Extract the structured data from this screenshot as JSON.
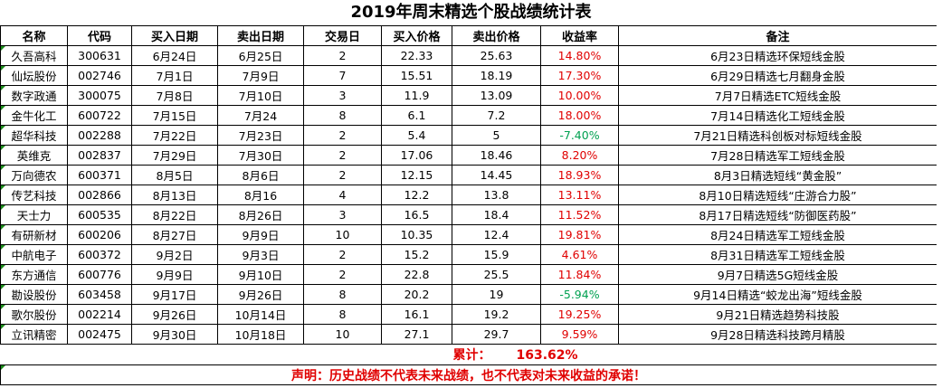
{
  "title": "2019年周末精选个股战绩统计表",
  "headers": [
    "名称",
    "代码",
    "买入日期",
    "卖出日期",
    "交易日",
    "买入价格",
    "卖出价格",
    "收益率",
    "备注"
  ],
  "rows": [
    {
      "name": "久吾高科",
      "code": "300631",
      "buy_date": "6月24日",
      "sell_date": "6月25日",
      "days": "2",
      "buy_price": "22.33",
      "sell_price": "25.63",
      "return": "14.80%",
      "note": "6月23日精选环保短线金股"
    },
    {
      "name": "仙坛股份",
      "code": "002746",
      "buy_date": "7月1日",
      "sell_date": "7月9日",
      "days": "7",
      "buy_price": "15.51",
      "sell_price": "18.19",
      "return": "17.30%",
      "note": "6月29日精选七月翻身金股"
    },
    {
      "name": "数字政通",
      "code": "300075",
      "buy_date": "7月8日",
      "sell_date": "7月10日",
      "days": "3",
      "buy_price": "11.9",
      "sell_price": "13.09",
      "return": "10.00%",
      "note": "7月7日精选ETC短线金股"
    },
    {
      "name": "金牛化工",
      "code": "600722",
      "buy_date": "7月15日",
      "sell_date": "7月24",
      "days": "8",
      "buy_price": "6.1",
      "sell_price": "7.2",
      "return": "18.00%",
      "note": "7月14日精选化工短线金股"
    },
    {
      "name": "超华科技",
      "code": "002288",
      "buy_date": "7月22日",
      "sell_date": "7月23日",
      "days": "2",
      "buy_price": "5.4",
      "sell_price": "5",
      "return": "-7.40%",
      "note": "7月21日精选科创板对标短线金股"
    },
    {
      "name": "英维克",
      "code": "002837",
      "buy_date": "7月29日",
      "sell_date": "7月30日",
      "days": "2",
      "buy_price": "17.06",
      "sell_price": "18.46",
      "return": "8.20%",
      "note": "7月28日精选军工短线金股"
    },
    {
      "name": "万向德农",
      "code": "600371",
      "buy_date": "8月5日",
      "sell_date": "8月6日",
      "days": "2",
      "buy_price": "12.15",
      "sell_price": "14.45",
      "return": "18.93%",
      "note": "8月3日精选短线“黄金股”"
    },
    {
      "name": "传艺科技",
      "code": "002866",
      "buy_date": "8月13日",
      "sell_date": "8月16",
      "days": "4",
      "buy_price": "12.2",
      "sell_price": "13.8",
      "return": "13.11%",
      "note": "8月10日精选短线“庄游合力股”"
    },
    {
      "name": "天士力",
      "code": "600535",
      "buy_date": "8月22日",
      "sell_date": "8月26日",
      "days": "3",
      "buy_price": "16.5",
      "sell_price": "18.4",
      "return": "11.52%",
      "note": "8月17日精选短线“防御医药股”"
    },
    {
      "name": "有研新材",
      "code": "600206",
      "buy_date": "8月27日",
      "sell_date": "9月9日",
      "days": "10",
      "buy_price": "10.35",
      "sell_price": "12.4",
      "return": "19.81%",
      "note": "8月24日精选军工短线金股"
    },
    {
      "name": "中航电子",
      "code": "600372",
      "buy_date": "9月2日",
      "sell_date": "9月3日",
      "days": "2",
      "buy_price": "15.2",
      "sell_price": "15.9",
      "return": "4.61%",
      "note": "8月31日精选军工短线金股"
    },
    {
      "name": "东方通信",
      "code": "600776",
      "buy_date": "9月9日",
      "sell_date": "9月10日",
      "days": "2",
      "buy_price": "22.8",
      "sell_price": "25.5",
      "return": "11.84%",
      "note": "9月7日精选5G短线金股"
    },
    {
      "name": "勘设股份",
      "code": "603458",
      "buy_date": "9月17日",
      "sell_date": "9月26日",
      "days": "8",
      "buy_price": "20.2",
      "sell_price": "19",
      "return": "-5.94%",
      "note": "9月14日精选“蛟龙出海”短线金股"
    },
    {
      "name": "歌尔股份",
      "code": "002214",
      "buy_date": "9月26日",
      "sell_date": "10月14日",
      "days": "8",
      "buy_price": "16.1",
      "sell_price": "19.2",
      "return": "19.25%",
      "note": "9月21日精选趋势科技股"
    },
    {
      "name": "立讯精密",
      "code": "002475",
      "buy_date": "9月30日",
      "sell_date": "10月18日",
      "days": "10",
      "buy_price": "27.1",
      "sell_price": "29.7",
      "return": "9.59%",
      "note": "9月28日精选科技跨月精股"
    }
  ],
  "total": {
    "label": "累计：",
    "value": "163.62%"
  },
  "disclaimer": "声明：历史战绩不代表未来战绩，也不代表对未来收益的承诺！",
  "colors": {
    "positive": "#e00000",
    "negative": "#00a050",
    "marker": "#1a8a1a"
  }
}
